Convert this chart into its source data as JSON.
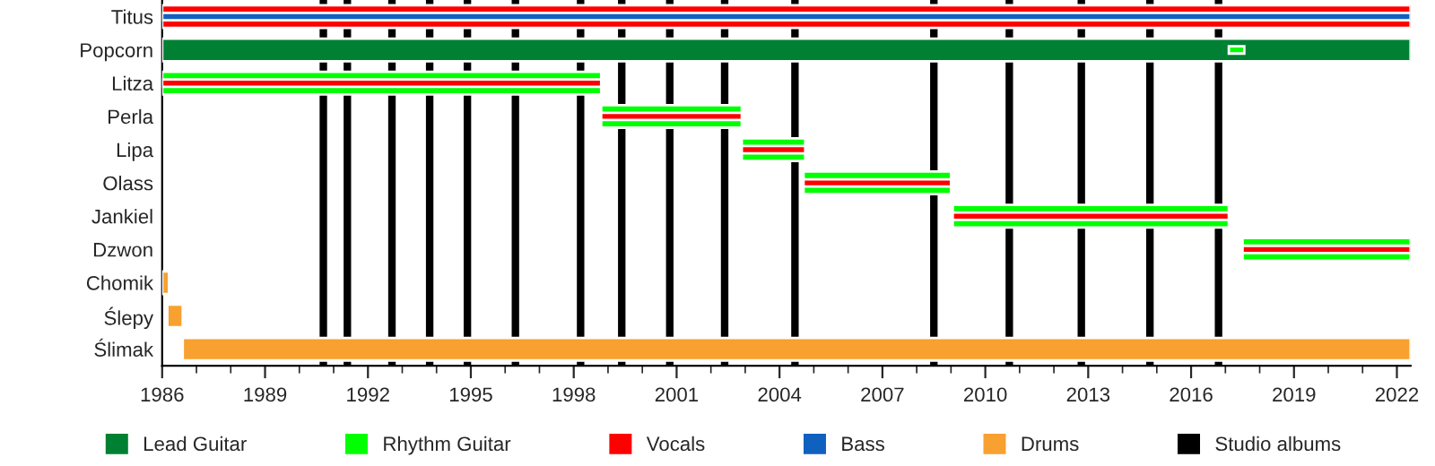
{
  "chart_data": {
    "type": "bar",
    "orientation": "horizontal",
    "categories": [
      "Titus",
      "Popcorn",
      "Litza",
      "Perla",
      "Lipa",
      "Olass",
      "Jankiel",
      "Dzwon",
      "Chomik",
      "Ślepy",
      "Ślimak"
    ],
    "series": [
      {
        "name": "Lead Guitar",
        "color": "#008033",
        "base": [
          null,
          1986,
          null,
          null,
          null,
          null,
          null,
          null,
          null,
          null,
          null
        ],
        "values": [
          null,
          36.4,
          null,
          null,
          null,
          null,
          null,
          null,
          null,
          null,
          null
        ]
      },
      {
        "name": "Rhythm Guitar",
        "color": "#00ff00",
        "base": [
          null,
          2017.1,
          1986,
          1998.8,
          2002.9,
          2004.7,
          2009.05,
          2017.5,
          null,
          null,
          null
        ],
        "values": [
          null,
          0.45,
          12.8,
          4.1,
          1.85,
          4.3,
          8.05,
          4.9,
          null,
          null,
          null
        ]
      },
      {
        "name": "Vocals",
        "color": "#ff0000",
        "base": [
          1986,
          null,
          1986,
          1998.8,
          2002.9,
          2004.7,
          2009.05,
          2017.5,
          null,
          null,
          null
        ],
        "values": [
          36.4,
          null,
          12.8,
          4.1,
          1.85,
          4.3,
          8.05,
          4.9,
          null,
          null,
          null
        ]
      },
      {
        "name": "Bass",
        "color": "#1060c0",
        "base": [
          1986,
          null,
          null,
          null,
          null,
          null,
          null,
          null,
          null,
          null,
          null
        ],
        "values": [
          36.4,
          null,
          null,
          null,
          null,
          null,
          null,
          null,
          null,
          null,
          null
        ]
      },
      {
        "name": "Drums",
        "color": "#f8a030",
        "base": [
          null,
          null,
          null,
          null,
          null,
          null,
          null,
          null,
          1986,
          1986.15,
          1986.6
        ],
        "values": [
          null,
          null,
          null,
          null,
          null,
          null,
          null,
          null,
          0.2,
          0.45,
          35.8
        ]
      }
    ],
    "ref_lines": [
      {
        "axis": "x",
        "value": 1990.7,
        "label": "Studio albums",
        "color": "#000000"
      },
      {
        "axis": "x",
        "value": 1991.4,
        "color": "#000000"
      },
      {
        "axis": "x",
        "value": 1992.7,
        "color": "#000000"
      },
      {
        "axis": "x",
        "value": 1993.8,
        "color": "#000000"
      },
      {
        "axis": "x",
        "value": 1994.9,
        "color": "#000000"
      },
      {
        "axis": "x",
        "value": 1996.3,
        "color": "#000000"
      },
      {
        "axis": "x",
        "value": 1998.2,
        "color": "#000000"
      },
      {
        "axis": "x",
        "value": 1999.4,
        "color": "#000000"
      },
      {
        "axis": "x",
        "value": 2000.8,
        "color": "#000000"
      },
      {
        "axis": "x",
        "value": 2002.4,
        "color": "#000000"
      },
      {
        "axis": "x",
        "value": 2004.45,
        "color": "#000000"
      },
      {
        "axis": "x",
        "value": 2008.5,
        "color": "#000000"
      },
      {
        "axis": "x",
        "value": 2010.7,
        "color": "#000000"
      },
      {
        "axis": "x",
        "value": 2012.8,
        "color": "#000000"
      },
      {
        "axis": "x",
        "value": 2014.8,
        "color": "#000000"
      },
      {
        "axis": "x",
        "value": 2016.8,
        "color": "#000000"
      }
    ],
    "xlim": [
      1986,
      2022.4
    ],
    "xticks": [
      1986,
      1989,
      1992,
      1995,
      1998,
      2001,
      2004,
      2007,
      2010,
      2013,
      2016,
      2019,
      2022
    ],
    "grid": false,
    "legend": "bottom"
  }
}
